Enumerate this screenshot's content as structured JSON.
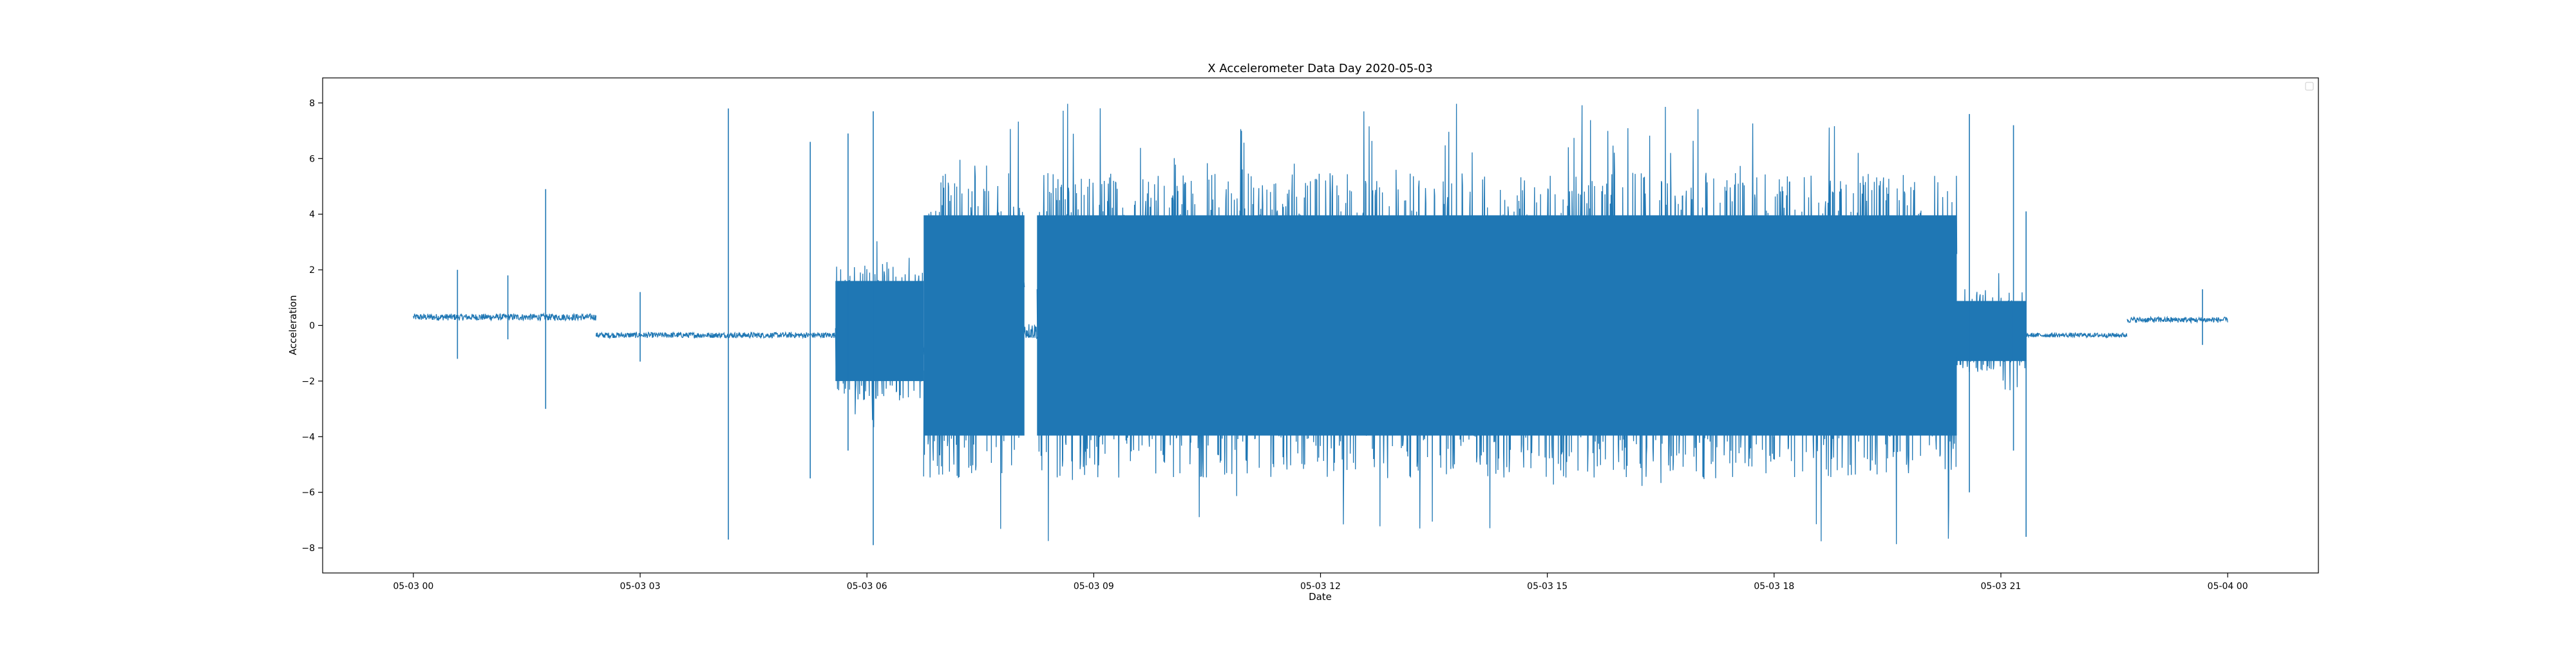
{
  "chart_data": {
    "type": "line",
    "title": "X Accelerometer Data Day 2020-05-03",
    "xlabel": "Date",
    "ylabel": "Acceleration",
    "x_ticks": [
      "05-03 00",
      "05-03 03",
      "05-03 06",
      "05-03 09",
      "05-03 12",
      "05-03 15",
      "05-03 18",
      "05-03 21",
      "05-04 00"
    ],
    "y_ticks": [
      "−8",
      "−6",
      "−4",
      "−2",
      "0",
      "2",
      "4",
      "6",
      "8"
    ],
    "x_range_hours": [
      -1.2,
      25.2
    ],
    "ylim": [
      -8.9,
      8.9
    ],
    "grid": false,
    "legend": "empty box at top-right",
    "color": "#1f77b4",
    "series": [
      {
        "segments": [
          {
            "x_start": "05-03 00:00",
            "x_end": "05-03 02:25",
            "center": 0.3,
            "noise_amplitude": 0.12
          },
          {
            "x_start": "05-03 02:25",
            "x_end": "05-03 05:35",
            "center": -0.35,
            "noise_amplitude": 0.1
          },
          {
            "x_start": "05-03 05:35",
            "x_end": "05-03 06:45",
            "center": -0.2,
            "noise_amplitude": 2.5
          },
          {
            "x_start": "05-03 06:45",
            "x_end": "05-03 08:05",
            "center": 0.0,
            "noise_amplitude": 5.5
          },
          {
            "x_start": "05-03 08:05",
            "x_end": "05-03 08:15",
            "center": -0.2,
            "noise_amplitude": 0.3
          },
          {
            "x_start": "05-03 08:15",
            "x_end": "05-03 20:25",
            "center": 0.0,
            "noise_amplitude": 5.5
          },
          {
            "x_start": "05-03 20:25",
            "x_end": "05-03 21:20",
            "center": -0.2,
            "noise_amplitude": 1.5
          },
          {
            "x_start": "05-03 21:20",
            "x_end": "05-03 22:40",
            "center": -0.35,
            "noise_amplitude": 0.08
          },
          {
            "x_start": "05-03 22:40",
            "x_end": "05-04 00:00",
            "center": 0.2,
            "noise_amplitude": 0.1
          }
        ],
        "spikes": [
          {
            "x": "05-03 00:35",
            "min": -1.2,
            "max": 2.0
          },
          {
            "x": "05-03 01:15",
            "min": -0.5,
            "max": 1.8
          },
          {
            "x": "05-03 01:45",
            "min": -3.0,
            "max": 4.9
          },
          {
            "x": "05-03 03:00",
            "min": -1.3,
            "max": 1.2
          },
          {
            "x": "05-03 04:10",
            "min": -7.7,
            "max": 7.8
          },
          {
            "x": "05-03 05:15",
            "min": -5.5,
            "max": 6.6
          },
          {
            "x": "05-03 05:45",
            "min": -4.5,
            "max": 6.9
          },
          {
            "x": "05-03 06:05",
            "min": -7.9,
            "max": 7.7
          },
          {
            "x": "05-03 20:35",
            "min": -6.0,
            "max": 7.6
          },
          {
            "x": "05-03 21:10",
            "min": -4.5,
            "max": 7.2
          },
          {
            "x": "05-03 21:20",
            "min": -7.6,
            "max": 4.1
          },
          {
            "x": "05-03 23:40",
            "min": -0.7,
            "max": 1.3
          }
        ]
      }
    ]
  }
}
